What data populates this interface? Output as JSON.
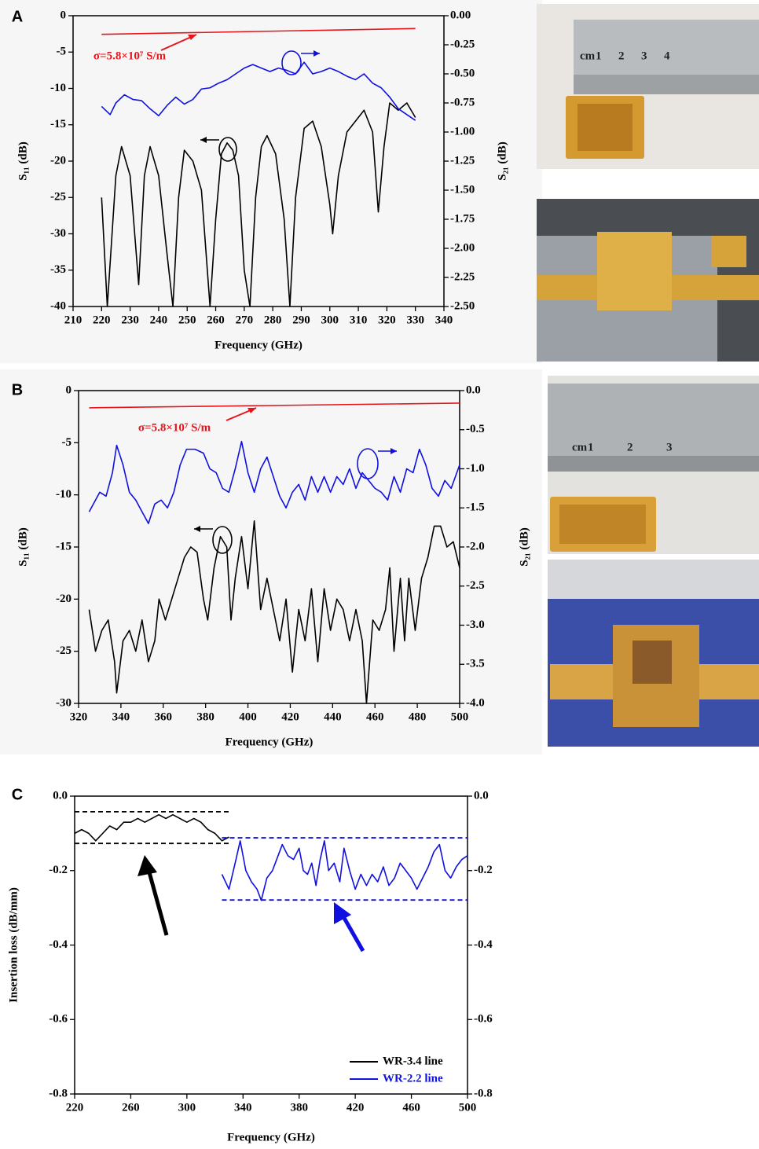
{
  "chart_data": [
    {
      "type": "line",
      "panel_label": "A",
      "x_label": "Frequency (GHz)",
      "y_label": "S₁₁ (dB)",
      "y2_label": "S₂₁ (dB)",
      "annotation": "σ=5.8×10⁷ S/m",
      "annotation_color": "#e8141b",
      "xlim": [
        210,
        340
      ],
      "xticks": [
        210,
        220,
        230,
        240,
        250,
        260,
        270,
        280,
        290,
        300,
        310,
        320,
        330,
        340
      ],
      "ylim": [
        -40,
        0
      ],
      "yticks": [
        0,
        -5,
        -10,
        -15,
        -20,
        -25,
        -30,
        -35,
        -40
      ],
      "y2lim": [
        -2.5,
        0
      ],
      "y2ticks": [
        {
          "value": 0,
          "label": "0.00"
        },
        -0.25,
        {
          "value": -0.5,
          "label": "-0.50"
        },
        -0.75,
        {
          "value": -1,
          "label": "-1.00"
        },
        -1.25,
        {
          "value": -1.5,
          "label": "-1.50"
        },
        -1.75,
        {
          "value": -2,
          "label": "-2.00"
        },
        -2.25,
        {
          "value": -2.5,
          "label": "-2.50"
        }
      ],
      "series": [
        {
          "color": "#000000",
          "axis": "y",
          "x": [
            220,
            222,
            225,
            227,
            230,
            233,
            235,
            237,
            240,
            243,
            245,
            247,
            249,
            252,
            255,
            258,
            260,
            262,
            264,
            266,
            268,
            270,
            272,
            274,
            276,
            278,
            281,
            284,
            286,
            288,
            291,
            294,
            297,
            300,
            301,
            303,
            306,
            309,
            312,
            315,
            317,
            319,
            321,
            324,
            327,
            330
          ],
          "values": [
            -25,
            -40,
            -22,
            -18,
            -22,
            -37,
            -22,
            -18,
            -22,
            -33,
            -40,
            -25,
            -18.5,
            -20,
            -24,
            -40,
            -28,
            -19,
            -17.5,
            -18.5,
            -22,
            -35,
            -40,
            -25,
            -18,
            -16.5,
            -19,
            -28,
            -40,
            -25,
            -15.5,
            -14.5,
            -18,
            -26,
            -30,
            -22,
            -16,
            -14.5,
            -13,
            -16,
            -27,
            -18,
            -12,
            -13,
            -12,
            -14
          ]
        },
        {
          "color": "#1010e0",
          "axis": "y2",
          "x": [
            220,
            223,
            225,
            228,
            231,
            234,
            237,
            240,
            243,
            246,
            249,
            252,
            255,
            258,
            261,
            264,
            267,
            270,
            273,
            276,
            279,
            282,
            285,
            288,
            291,
            294,
            297,
            300,
            303,
            306,
            309,
            312,
            315,
            318,
            321,
            324,
            327,
            330
          ],
          "values": [
            -0.78,
            -0.85,
            -0.75,
            -0.68,
            -0.72,
            -0.73,
            -0.8,
            -0.86,
            -0.77,
            -0.7,
            -0.76,
            -0.72,
            -0.63,
            -0.62,
            -0.58,
            -0.55,
            -0.5,
            -0.45,
            -0.42,
            -0.45,
            -0.48,
            -0.45,
            -0.47,
            -0.5,
            -0.4,
            -0.5,
            -0.48,
            -0.45,
            -0.48,
            -0.52,
            -0.55,
            -0.5,
            -0.58,
            -0.62,
            -0.7,
            -0.8,
            -0.85,
            -0.9
          ]
        },
        {
          "color": "#e8141b",
          "axis": "y2",
          "x": [
            220,
            330
          ],
          "values": [
            -0.16,
            -0.11
          ]
        }
      ]
    },
    {
      "type": "line",
      "panel_label": "B",
      "x_label": "Frequency (GHz)",
      "y_label": "S₁₁ (dB)",
      "y2_label": "S₂₁ (dB)",
      "annotation": "σ=5.8×10⁷ S/m",
      "annotation_color": "#e8141b",
      "xlim": [
        320,
        500
      ],
      "xticks": [
        320,
        340,
        360,
        380,
        400,
        420,
        440,
        460,
        480,
        500
      ],
      "ylim": [
        -30,
        0
      ],
      "yticks": [
        0,
        -5,
        -10,
        -15,
        -20,
        -25,
        -30
      ],
      "y2lim": [
        -4,
        0
      ],
      "y2ticks": [
        {
          "value": 0,
          "label": "0.0"
        },
        -0.5,
        {
          "value": -1,
          "label": "-1.0"
        },
        -1.5,
        {
          "value": -2,
          "label": "-2.0"
        },
        -2.5,
        {
          "value": -3,
          "label": "-3.0"
        },
        -3.5,
        {
          "value": -4,
          "label": "-4.0"
        }
      ],
      "series": [
        {
          "color": "#000000",
          "axis": "y",
          "x": [
            325,
            328,
            331,
            334,
            337,
            338,
            341,
            344,
            347,
            350,
            353,
            356,
            358,
            361,
            364,
            367,
            370,
            373,
            376,
            379,
            381,
            384,
            387,
            390,
            392,
            394,
            397,
            400,
            403,
            406,
            409,
            412,
            415,
            418,
            421,
            424,
            427,
            430,
            433,
            436,
            439,
            442,
            445,
            448,
            451,
            454,
            456,
            459,
            462,
            465,
            467,
            469,
            472,
            474,
            476,
            479,
            482,
            485,
            488,
            491,
            494,
            497,
            500
          ],
          "values": [
            -21,
            -25,
            -23,
            -22,
            -26,
            -29,
            -24,
            -23,
            -25,
            -22,
            -26,
            -24,
            -20,
            -22,
            -20,
            -18,
            -16,
            -15,
            -15.5,
            -20,
            -22,
            -17,
            -14,
            -15,
            -22,
            -18,
            -14,
            -19,
            -12.5,
            -21,
            -18,
            -21,
            -24,
            -20,
            -27,
            -21,
            -24,
            -19,
            -26,
            -19,
            -23,
            -20,
            -21,
            -24,
            -21,
            -24,
            -30,
            -22,
            -23,
            -21,
            -17,
            -25,
            -18,
            -24,
            -18,
            -23,
            -18,
            -16,
            -13,
            -13,
            -15,
            -14.5,
            -17
          ]
        },
        {
          "color": "#1010e0",
          "axis": "y2",
          "x": [
            325,
            330,
            333,
            336,
            338,
            341,
            344,
            347,
            350,
            353,
            356,
            359,
            362,
            365,
            368,
            371,
            375,
            379,
            382,
            385,
            388,
            391,
            394,
            397,
            400,
            403,
            406,
            409,
            412,
            415,
            418,
            421,
            424,
            427,
            430,
            433,
            436,
            439,
            442,
            445,
            448,
            451,
            454,
            457,
            460,
            463,
            466,
            469,
            472,
            475,
            478,
            481,
            484,
            487,
            490,
            493,
            496,
            500
          ],
          "values": [
            -1.55,
            -1.3,
            -1.35,
            -1.05,
            -0.7,
            -0.95,
            -1.3,
            -1.4,
            -1.55,
            -1.7,
            -1.45,
            -1.4,
            -1.5,
            -1.3,
            -0.95,
            -0.75,
            -0.75,
            -0.8,
            -1,
            -1.05,
            -1.25,
            -1.3,
            -1,
            -0.65,
            -1.05,
            -1.3,
            -1,
            -0.85,
            -1.1,
            -1.35,
            -1.5,
            -1.3,
            -1.2,
            -1.4,
            -1.1,
            -1.3,
            -1.1,
            -1.3,
            -1.1,
            -1.2,
            -1,
            -1.25,
            -1.05,
            -1.15,
            -1.25,
            -1.3,
            -1.4,
            -1.1,
            -1.3,
            -1,
            -1.05,
            -0.75,
            -0.95,
            -1.25,
            -1.35,
            -1.15,
            -1.25,
            -0.95
          ]
        },
        {
          "color": "#e8141b",
          "axis": "y2",
          "x": [
            325,
            500
          ],
          "values": [
            -0.22,
            -0.16
          ]
        }
      ]
    },
    {
      "type": "line",
      "panel_label": "C",
      "x_label": "Frequency (GHz)",
      "y_label": "Insertion loss (dB/mm)",
      "xlim": [
        220,
        500
      ],
      "xticks": [
        220,
        260,
        300,
        340,
        380,
        420,
        460,
        500
      ],
      "ylim": [
        -0.8,
        0
      ],
      "yticks": [
        {
          "value": 0,
          "label": "0.0"
        },
        -0.2,
        -0.4,
        -0.6,
        -0.8
      ],
      "y2lim": [
        -0.8,
        0
      ],
      "y2ticks": [
        {
          "value": 0,
          "label": "0.0"
        },
        -0.2,
        -0.4,
        -0.6,
        -0.8
      ],
      "legend": "lower right",
      "series": [
        {
          "name": "WR-3.4 line",
          "color": "#000000",
          "axis": "y",
          "x": [
            220,
            225,
            230,
            235,
            240,
            245,
            250,
            255,
            260,
            265,
            270,
            275,
            280,
            285,
            290,
            295,
            300,
            305,
            310,
            315,
            320,
            325,
            330
          ],
          "values": [
            -0.1,
            -0.09,
            -0.1,
            -0.12,
            -0.1,
            -0.08,
            -0.09,
            -0.07,
            -0.07,
            -0.06,
            -0.07,
            -0.06,
            -0.05,
            -0.06,
            -0.05,
            -0.06,
            -0.07,
            -0.06,
            -0.07,
            -0.09,
            -0.1,
            -0.12,
            -0.11
          ]
        },
        {
          "name": "WR-2.2 line",
          "color": "#1010e0",
          "axis": "y",
          "x": [
            325,
            330,
            335,
            338,
            342,
            346,
            350,
            353,
            357,
            361,
            364,
            368,
            372,
            376,
            380,
            383,
            386,
            389,
            392,
            395,
            398,
            401,
            405,
            409,
            412,
            416,
            420,
            424,
            428,
            432,
            436,
            440,
            444,
            448,
            452,
            456,
            460,
            464,
            468,
            472,
            476,
            480,
            484,
            488,
            492,
            496,
            500
          ],
          "values": [
            -0.21,
            -0.25,
            -0.17,
            -0.12,
            -0.2,
            -0.23,
            -0.25,
            -0.28,
            -0.22,
            -0.2,
            -0.17,
            -0.13,
            -0.16,
            -0.17,
            -0.14,
            -0.2,
            -0.21,
            -0.18,
            -0.24,
            -0.17,
            -0.12,
            -0.2,
            -0.18,
            -0.23,
            -0.14,
            -0.2,
            -0.25,
            -0.21,
            -0.24,
            -0.21,
            -0.23,
            -0.19,
            -0.24,
            -0.22,
            -0.18,
            -0.2,
            -0.22,
            -0.25,
            -0.22,
            -0.19,
            -0.15,
            -0.13,
            -0.2,
            -0.22,
            -0.19,
            -0.17,
            -0.16
          ]
        },
        {
          "color": "#000000",
          "axis": "y",
          "style": "dashed",
          "x": [
            220,
            330
          ],
          "values": [
            -0.042,
            -0.042
          ]
        },
        {
          "color": "#000000",
          "axis": "y",
          "style": "dashed",
          "x": [
            220,
            330
          ],
          "values": [
            -0.127,
            -0.127
          ]
        },
        {
          "color": "#1010e0",
          "axis": "y",
          "style": "dashed",
          "x": [
            325,
            500
          ],
          "values": [
            -0.112,
            -0.112
          ]
        },
        {
          "color": "#1010e0",
          "axis": "y",
          "style": "dashed",
          "x": [
            325,
            500
          ],
          "values": [
            -0.279,
            -0.279
          ]
        }
      ]
    }
  ],
  "photos": {
    "a_ruler": [
      "cm",
      "1",
      "2",
      "3",
      "4"
    ],
    "b_ruler": [
      "cm",
      "1",
      "2",
      "3"
    ]
  }
}
